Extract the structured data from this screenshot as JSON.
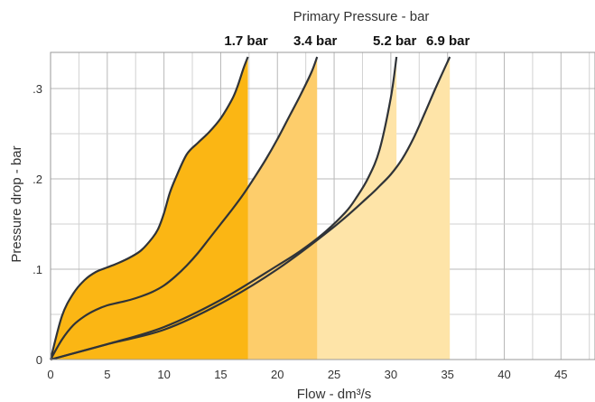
{
  "chart_data": {
    "type": "area",
    "title": "Primary Pressure - bar",
    "xlabel": "Flow - dm³/s",
    "ylabel": "Pressure drop - bar",
    "xlim": [
      0,
      48
    ],
    "ylim": [
      0,
      0.34
    ],
    "x_ticks": [
      "0",
      "5",
      "10",
      "15",
      "20",
      "25",
      "30",
      "35",
      "40",
      "45"
    ],
    "y_ticks": [
      "0",
      ".1",
      ".2",
      ".3"
    ],
    "grid": true,
    "minor_grid": true,
    "series": [
      {
        "name": "1.7 bar",
        "color": "#fbb614",
        "max_flow": 17.4,
        "x": [
          0,
          1,
          2,
          3,
          4,
          5,
          6,
          7,
          8,
          9,
          9.5,
          10,
          10.5,
          11,
          12,
          13,
          14,
          15,
          16,
          16.5,
          17,
          17.4
        ],
        "y": [
          0,
          0.048,
          0.073,
          0.088,
          0.097,
          0.102,
          0.107,
          0.113,
          0.121,
          0.135,
          0.145,
          0.162,
          0.184,
          0.2,
          0.227,
          0.24,
          0.252,
          0.267,
          0.288,
          0.303,
          0.322,
          0.335
        ]
      },
      {
        "name": "3.4 bar",
        "color": "#fdcd6b",
        "max_flow": 23.5,
        "x": [
          0,
          1,
          2,
          3,
          4,
          5,
          6,
          7,
          8,
          9,
          10,
          11,
          12,
          13,
          14,
          15,
          16,
          17,
          18,
          19,
          20,
          21,
          22,
          23,
          23.5
        ],
        "y": [
          0,
          0.022,
          0.038,
          0.048,
          0.055,
          0.06,
          0.063,
          0.066,
          0.07,
          0.075,
          0.082,
          0.092,
          0.104,
          0.118,
          0.134,
          0.15,
          0.166,
          0.183,
          0.202,
          0.222,
          0.244,
          0.268,
          0.292,
          0.318,
          0.335
        ]
      },
      {
        "name": "5.2 bar",
        "color": "#fee4a8",
        "max_flow": 30.5,
        "x": [
          0,
          5,
          10,
          15,
          20,
          22,
          24,
          26,
          27,
          28,
          29,
          30,
          30.5
        ],
        "y": [
          0,
          0.017,
          0.036,
          0.066,
          0.104,
          0.12,
          0.139,
          0.163,
          0.18,
          0.201,
          0.232,
          0.29,
          0.335
        ]
      },
      {
        "name": "6.9 bar",
        "color": "#fee4a8",
        "max_flow": 35.2,
        "x": [
          0,
          5,
          10,
          15,
          20,
          25,
          28,
          29,
          30,
          31,
          32,
          33,
          34,
          35.2
        ],
        "y": [
          0,
          0.017,
          0.033,
          0.062,
          0.1,
          0.147,
          0.18,
          0.192,
          0.205,
          0.222,
          0.245,
          0.273,
          0.302,
          0.335
        ]
      }
    ]
  }
}
